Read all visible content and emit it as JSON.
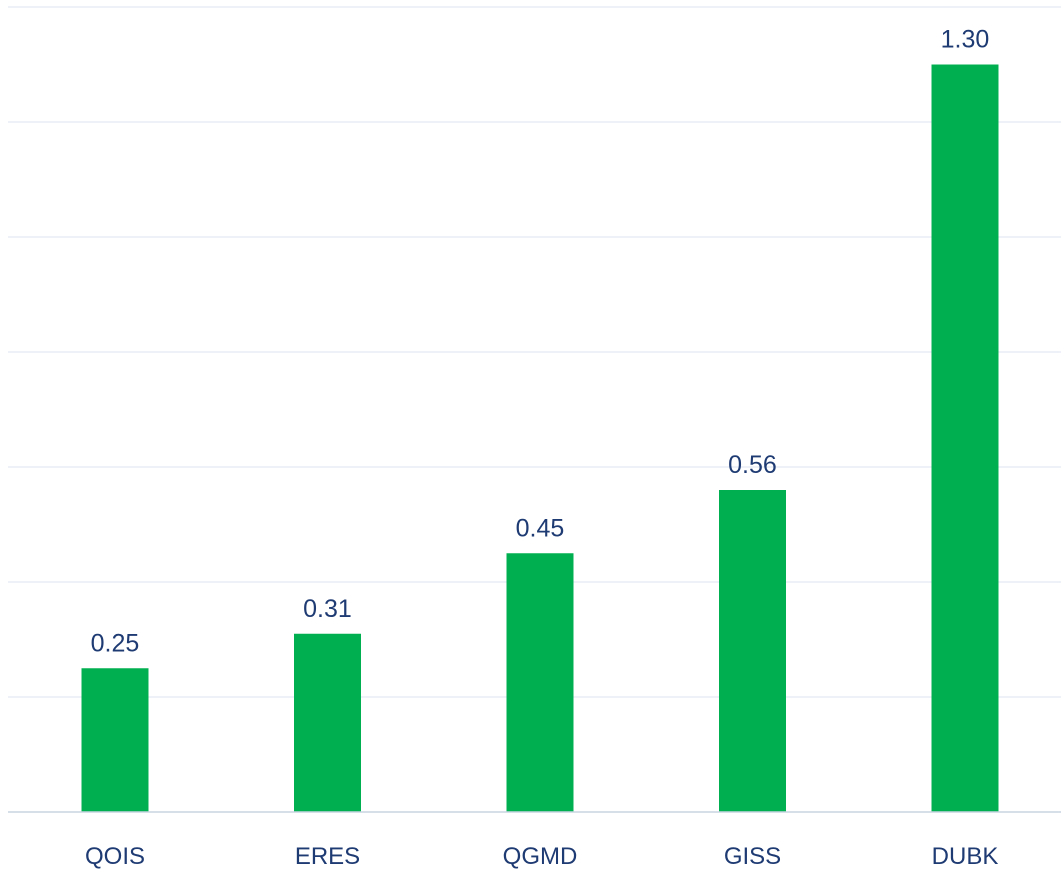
{
  "chart_data": {
    "type": "bar",
    "categories": [
      "QOIS",
      "ERES",
      "QGMD",
      "GISS",
      "DUBK"
    ],
    "values": [
      0.25,
      0.31,
      0.45,
      0.56,
      1.3
    ],
    "value_labels": [
      "0.25",
      "0.31",
      "0.45",
      "0.56",
      "1.30"
    ],
    "title": "",
    "xlabel": "",
    "ylabel": "",
    "ylim": [
      0,
      1.4
    ],
    "gridline_step": 0.2,
    "grid": true,
    "legend": "none",
    "colors": {
      "bar": "#00B050",
      "label": "#1F3B73",
      "grid": "#DCE6F2",
      "axis": "#C8D3E0"
    }
  }
}
